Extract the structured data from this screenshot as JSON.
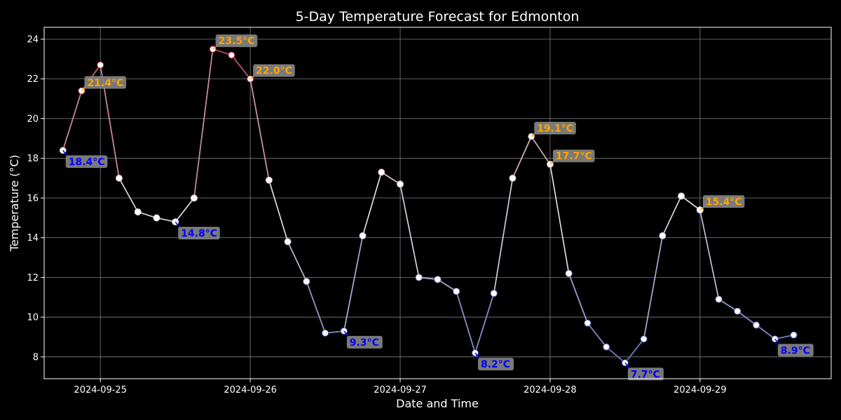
{
  "chart_data": {
    "type": "line",
    "title": "5-Day Temperature Forecast for Edmonton",
    "xlabel": "Date and Time",
    "ylabel": "Temperature (°C)",
    "x_tick_labels": [
      "2024-09-25",
      "2024-09-26",
      "2024-09-27",
      "2024-09-28",
      "2024-09-29"
    ],
    "y_ticks": [
      8,
      10,
      12,
      14,
      16,
      18,
      20,
      22,
      24
    ],
    "ylim": [
      6.9,
      24.6
    ],
    "xlim": [
      "2024-09-24 15:00",
      "2024-09-29 21:00"
    ],
    "grid": true,
    "series": [
      {
        "x": [
          "2024-09-24 18:00",
          "2024-09-24 21:00",
          "2024-09-25 00:00",
          "2024-09-25 03:00",
          "2024-09-25 06:00",
          "2024-09-25 09:00",
          "2024-09-25 12:00",
          "2024-09-25 15:00",
          "2024-09-25 18:00",
          "2024-09-25 21:00",
          "2024-09-26 00:00",
          "2024-09-26 03:00",
          "2024-09-26 06:00",
          "2024-09-26 09:00",
          "2024-09-26 12:00",
          "2024-09-26 15:00",
          "2024-09-26 18:00",
          "2024-09-26 21:00",
          "2024-09-27 00:00",
          "2024-09-27 03:00",
          "2024-09-27 06:00",
          "2024-09-27 09:00",
          "2024-09-27 12:00",
          "2024-09-27 15:00",
          "2024-09-27 18:00",
          "2024-09-27 21:00",
          "2024-09-28 00:00",
          "2024-09-28 03:00",
          "2024-09-28 06:00",
          "2024-09-28 09:00",
          "2024-09-28 12:00",
          "2024-09-28 15:00",
          "2024-09-28 18:00",
          "2024-09-28 21:00",
          "2024-09-29 00:00",
          "2024-09-29 03:00",
          "2024-09-29 06:00",
          "2024-09-29 09:00",
          "2024-09-29 12:00",
          "2024-09-29 15:00"
        ],
        "values": [
          18.4,
          21.4,
          22.7,
          17.0,
          15.3,
          15.0,
          14.8,
          16.0,
          23.5,
          23.2,
          22.0,
          16.9,
          13.8,
          11.8,
          9.2,
          9.3,
          14.1,
          17.3,
          16.7,
          12.0,
          11.9,
          11.3,
          8.2,
          11.2,
          17.0,
          19.1,
          17.7,
          12.2,
          9.7,
          8.5,
          7.7,
          8.9,
          14.1,
          16.1,
          15.4,
          10.9,
          10.3,
          9.6,
          8.9,
          9.1
        ]
      }
    ],
    "annotations": [
      {
        "text": "18.4°C",
        "x": "2024-09-24 18:00",
        "value": 18.4,
        "kind": "min"
      },
      {
        "text": "21.4°C",
        "x": "2024-09-24 21:00",
        "value": 21.4,
        "kind": "max"
      },
      {
        "text": "14.8°C",
        "x": "2024-09-25 12:00",
        "value": 14.8,
        "kind": "min"
      },
      {
        "text": "23.5°C",
        "x": "2024-09-25 18:00",
        "value": 23.5,
        "kind": "max"
      },
      {
        "text": "22.0°C",
        "x": "2024-09-26 00:00",
        "value": 22.0,
        "kind": "max"
      },
      {
        "text": "9.3°C",
        "x": "2024-09-26 15:00",
        "value": 9.3,
        "kind": "min"
      },
      {
        "text": "8.2°C",
        "x": "2024-09-27 12:00",
        "value": 8.2,
        "kind": "min"
      },
      {
        "text": "19.1°C",
        "x": "2024-09-27 21:00",
        "value": 19.1,
        "kind": "max"
      },
      {
        "text": "17.7°C",
        "x": "2024-09-28 00:00",
        "value": 17.7,
        "kind": "max"
      },
      {
        "text": "7.7°C",
        "x": "2024-09-28 12:00",
        "value": 7.7,
        "kind": "min"
      },
      {
        "text": "15.4°C",
        "x": "2024-09-29 00:00",
        "value": 15.4,
        "kind": "max"
      },
      {
        "text": "8.9°C",
        "x": "2024-09-29 12:00",
        "value": 8.9,
        "kind": "min"
      }
    ],
    "colors": {
      "background": "#000000",
      "grid": "#808080",
      "axes": "#ffffff",
      "cool": "#3b4cc0",
      "neutral": "#dddddd",
      "warm": "#b40426",
      "annotation_warm_text": "#ffa500",
      "annotation_cool_text": "#0000ff",
      "annotation_box": "#808080"
    }
  }
}
